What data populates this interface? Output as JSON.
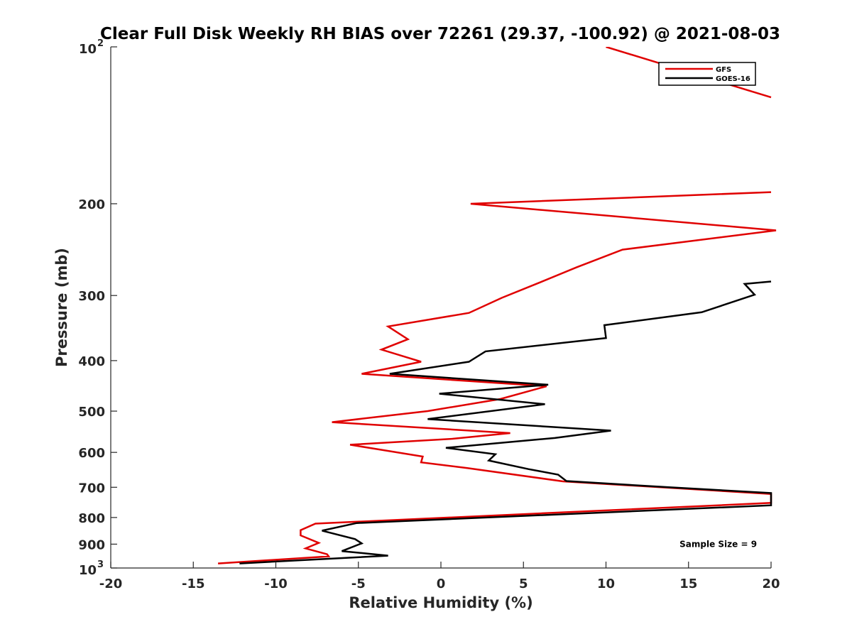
{
  "chart_data": {
    "type": "line",
    "title": "Clear Full Disk Weekly RH BIAS over 72261 (29.37, -100.92) @ 2021-08-03",
    "xlabel": "Relative Humidity (%)",
    "ylabel": "Pressure (mb)",
    "xlim": [
      -20,
      20
    ],
    "ylim": [
      100,
      1000
    ],
    "yscale": "log",
    "y_reversed": true,
    "grid": false,
    "legend_position": "top-right",
    "x_ticks": [
      {
        "value": -20,
        "label": "-20"
      },
      {
        "value": -15,
        "label": "-15"
      },
      {
        "value": -10,
        "label": "-10"
      },
      {
        "value": -5,
        "label": "-5"
      },
      {
        "value": 0,
        "label": "0"
      },
      {
        "value": 5,
        "label": "5"
      },
      {
        "value": 10,
        "label": "10"
      },
      {
        "value": 15,
        "label": "15"
      },
      {
        "value": 20,
        "label": "20"
      }
    ],
    "y_ticks": [
      {
        "value": 100,
        "base": "10",
        "exp": "2"
      },
      {
        "value": 200,
        "label": "200"
      },
      {
        "value": 300,
        "label": "300"
      },
      {
        "value": 400,
        "label": "400"
      },
      {
        "value": 500,
        "label": "500"
      },
      {
        "value": 600,
        "label": "600"
      },
      {
        "value": 700,
        "label": "700"
      },
      {
        "value": 800,
        "label": "800"
      },
      {
        "value": 900,
        "label": "900"
      },
      {
        "value": 1000,
        "base": "10",
        "exp": "3"
      }
    ],
    "series": [
      {
        "name": "GFS",
        "color": "#e00000",
        "points": [
          [
            10.0,
            100
          ],
          [
            20.0,
            125
          ],
          null,
          [
            20.0,
            190
          ],
          [
            1.8,
            200
          ],
          [
            20.3,
            225
          ],
          [
            11.0,
            245
          ],
          [
            8.2,
            265
          ],
          [
            5.9,
            284
          ],
          [
            3.7,
            303
          ],
          [
            1.7,
            324
          ],
          [
            -3.2,
            344
          ],
          [
            -2.0,
            364
          ],
          [
            -3.6,
            381
          ],
          [
            -1.2,
            402
          ],
          [
            -4.8,
            424
          ],
          [
            6.4,
            448
          ],
          [
            3.6,
            474
          ],
          [
            -0.8,
            500
          ],
          [
            -6.6,
            525
          ],
          [
            4.2,
            551
          ],
          [
            0.7,
            565
          ],
          [
            -5.5,
            580
          ],
          [
            -1.1,
            611
          ],
          [
            -1.2,
            627
          ],
          [
            1.6,
            643
          ],
          [
            7.4,
            682
          ],
          [
            20.0,
            721
          ],
          [
            20.0,
            750
          ],
          [
            -7.6,
            822
          ],
          [
            -8.5,
            846
          ],
          [
            -8.5,
            866
          ],
          [
            -7.4,
            895
          ],
          [
            -8.2,
            917
          ],
          [
            -6.9,
            941
          ],
          [
            -6.8,
            950
          ],
          [
            -13.5,
            980
          ]
        ]
      },
      {
        "name": "GOES-16",
        "color": "#000000",
        "points": [
          [
            20.0,
            282
          ],
          [
            18.4,
            285
          ],
          [
            19.0,
            299
          ],
          [
            15.8,
            323
          ],
          [
            9.9,
            342
          ],
          [
            10.0,
            362
          ],
          [
            2.7,
            384
          ],
          [
            1.7,
            402
          ],
          [
            -3.1,
            424
          ],
          [
            6.5,
            445
          ],
          [
            -0.1,
            463
          ],
          [
            6.3,
            485
          ],
          [
            -0.8,
            518
          ],
          [
            10.3,
            545
          ],
          [
            6.9,
            563
          ],
          [
            0.3,
            588
          ],
          [
            3.3,
            605
          ],
          [
            2.9,
            622
          ],
          [
            5.3,
            646
          ],
          [
            7.1,
            662
          ],
          [
            7.6,
            681
          ],
          [
            13.8,
            700
          ],
          [
            20.0,
            718
          ],
          [
            20.0,
            758
          ],
          [
            -5.1,
            820
          ],
          [
            -7.2,
            848
          ],
          [
            -5.2,
            880
          ],
          [
            -4.8,
            897
          ],
          [
            -6.0,
            928
          ],
          [
            -3.2,
            947
          ],
          [
            -12.2,
            980
          ]
        ]
      }
    ],
    "annotations": [
      {
        "text": "Sample Size = 9",
        "x": 16.8,
        "y": 900
      }
    ]
  }
}
